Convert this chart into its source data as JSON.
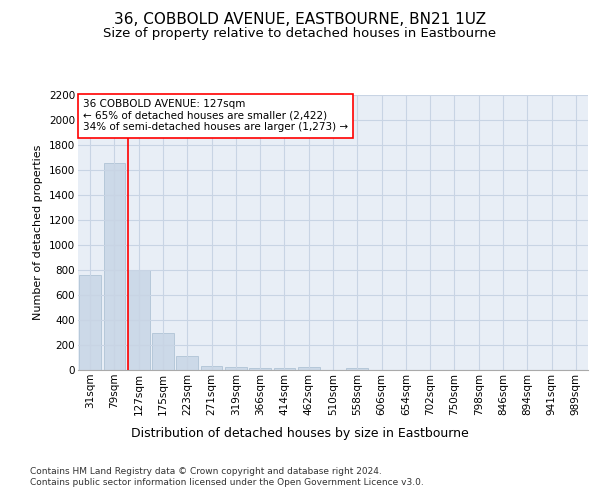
{
  "title": "36, COBBOLD AVENUE, EASTBOURNE, BN21 1UZ",
  "subtitle": "Size of property relative to detached houses in Eastbourne",
  "xlabel": "Distribution of detached houses by size in Eastbourne",
  "ylabel": "Number of detached properties",
  "categories": [
    "31sqm",
    "79sqm",
    "127sqm",
    "175sqm",
    "223sqm",
    "271sqm",
    "319sqm",
    "366sqm",
    "414sqm",
    "462sqm",
    "510sqm",
    "558sqm",
    "606sqm",
    "654sqm",
    "702sqm",
    "750sqm",
    "798sqm",
    "846sqm",
    "894sqm",
    "941sqm",
    "989sqm"
  ],
  "values": [
    760,
    1660,
    800,
    295,
    110,
    35,
    25,
    18,
    15,
    28,
    0,
    18,
    0,
    0,
    0,
    0,
    0,
    0,
    0,
    0,
    0
  ],
  "bar_color": "#ccd9e8",
  "bar_edge_color": "#a8bdd0",
  "red_line_x": 2,
  "annotation_line1": "36 COBBOLD AVENUE: 127sqm",
  "annotation_line2": "← 65% of detached houses are smaller (2,422)",
  "annotation_line3": "34% of semi-detached houses are larger (1,273) →",
  "annotation_box_color": "white",
  "annotation_box_edge_color": "red",
  "ylim": [
    0,
    2200
  ],
  "yticks": [
    0,
    200,
    400,
    600,
    800,
    1000,
    1200,
    1400,
    1600,
    1800,
    2000,
    2200
  ],
  "grid_color": "#c8d4e4",
  "background_color": "#e8eef6",
  "footer": "Contains HM Land Registry data © Crown copyright and database right 2024.\nContains public sector information licensed under the Open Government Licence v3.0.",
  "title_fontsize": 11,
  "subtitle_fontsize": 9.5,
  "xlabel_fontsize": 9,
  "ylabel_fontsize": 8,
  "tick_fontsize": 7.5,
  "annotation_fontsize": 7.5,
  "footer_fontsize": 6.5
}
